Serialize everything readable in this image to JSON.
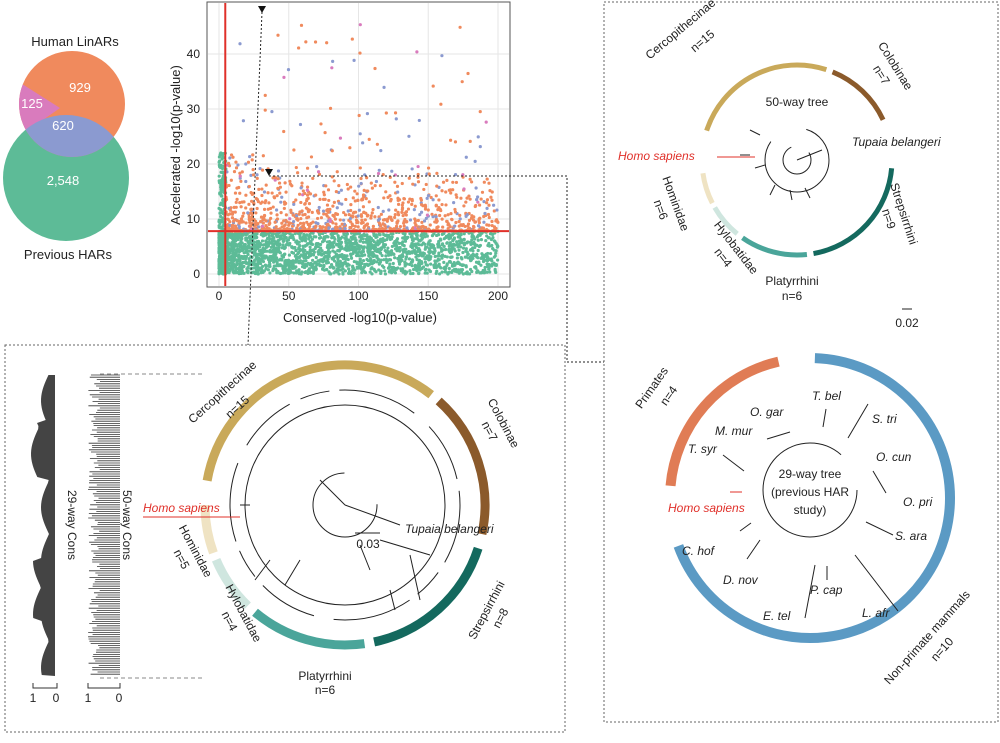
{
  "venn": {
    "top_label": "Human LinARs",
    "bottom_label": "Previous HARs",
    "linars_only": "929",
    "linars_other": "125",
    "overlap": "620",
    "previous_only": "2,548",
    "colors": {
      "linars": "#f08a5d",
      "other": "#d97bbd",
      "overlap": "#8b9ad0",
      "previous": "#5dbb97"
    }
  },
  "scatter": {
    "xlabel": "Conserved -log10(p-value)",
    "ylabel": "Accelerated -log10(p-value)",
    "x_ticks": [
      "0",
      "50",
      "100",
      "150",
      "200"
    ],
    "y_ticks": [
      "0",
      "10",
      "20",
      "30",
      "40"
    ],
    "xlim": [
      0,
      200
    ],
    "ylim": [
      0,
      48
    ],
    "threshold_conserved": 4.5,
    "threshold_accelerated": 7.8,
    "threshold_color": "#e0302a",
    "grid": true
  },
  "big_tree": {
    "clades": [
      {
        "name": "Cercopithecinae",
        "n": "n=15",
        "color": "#c9a95a"
      },
      {
        "name": "Colobinae",
        "n": "n=7",
        "color": "#8b5a2b"
      },
      {
        "name": "Strepsirrhini",
        "n": "n=8",
        "color": "#14695e"
      },
      {
        "name": "Platyrrhini",
        "n": "n=6",
        "color": "#4aa59a"
      },
      {
        "name": "Hylobatidae",
        "n": "n=4",
        "color": "#cfe6df"
      },
      {
        "name": "Hominidae",
        "n": "n=5",
        "color": "#efe3c3"
      }
    ],
    "homo": "Homo sapiens",
    "outgroup": "Tupaia belangeri",
    "scale": "0.03",
    "track_29": "29-way Cons",
    "track_50": "50-way Cons",
    "track_axis": [
      "1",
      "0",
      "1",
      "0"
    ]
  },
  "tree50": {
    "title": "50-way tree",
    "clades": [
      {
        "name": "Cercopithecinae",
        "n": "n=15"
      },
      {
        "name": "Colobinae",
        "n": "n=7"
      },
      {
        "name": "Strepsirrhini",
        "n": "n=9"
      },
      {
        "name": "Platyrrhini",
        "n": "n=6"
      },
      {
        "name": "Hylobatidae",
        "n": "n=4"
      },
      {
        "name": "Hominidae",
        "n": "n=6"
      }
    ],
    "homo": "Homo sapiens",
    "outgroup": "Tupaia belangeri",
    "scale": "0.02"
  },
  "tree29": {
    "title_line1": "29-way tree",
    "title_line2": "(previous HAR",
    "title_line3": "study)",
    "primates": "Primates",
    "primates_n": "n=4",
    "nonprimates": "Non-primate mammals",
    "nonprimates_n": "n=10",
    "primates_color": "#e07c55",
    "nonprimates_color": "#5b9ac4",
    "homo": "Homo sapiens",
    "species": [
      "T. bel",
      "S. tri",
      "O. cun",
      "O. pri",
      "S. ara",
      "L. afr",
      "P. cap",
      "E. tel",
      "D. nov",
      "C. hof",
      "T. syr",
      "M. mur",
      "O. gar"
    ]
  }
}
